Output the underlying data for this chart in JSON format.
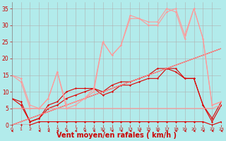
{
  "background_color": "#b2ebeb",
  "grid_color": "#b0b0b0",
  "xlabel": "Vent moyen/en rafales ( km/h )",
  "xlabel_color": "#cc0000",
  "xlabel_fontsize": 7,
  "xtick_color": "#cc0000",
  "ytick_color": "#cc0000",
  "ylim": [
    0,
    37
  ],
  "xlim": [
    0,
    23
  ],
  "yticks": [
    0,
    5,
    10,
    15,
    20,
    25,
    30,
    35
  ],
  "xticks": [
    0,
    1,
    2,
    3,
    4,
    5,
    6,
    7,
    8,
    9,
    10,
    11,
    12,
    13,
    14,
    15,
    16,
    17,
    18,
    19,
    20,
    21,
    22,
    23
  ],
  "series": [
    {
      "x": [
        0,
        1,
        2,
        3,
        4,
        5,
        6,
        7,
        8,
        9,
        10,
        11,
        12,
        13,
        14,
        15,
        16,
        17,
        18,
        19,
        20,
        21,
        22,
        23
      ],
      "y": [
        8,
        7,
        1,
        2,
        5,
        6,
        8,
        9,
        10,
        11,
        9,
        10,
        12,
        12,
        13,
        14,
        14,
        17,
        17,
        14,
        14,
        6,
        2,
        7
      ],
      "color": "#dd0000",
      "marker": "D",
      "markersize": 1.5,
      "linewidth": 0.8
    },
    {
      "x": [
        0,
        1,
        2,
        3,
        4,
        5,
        6,
        7,
        8,
        9,
        10,
        11,
        12,
        13,
        14,
        15,
        16,
        17,
        18,
        19,
        20,
        21,
        22,
        23
      ],
      "y": [
        8,
        6,
        1,
        2,
        6,
        7,
        10,
        11,
        11,
        11,
        10,
        12,
        13,
        13,
        14,
        15,
        17,
        17,
        16,
        14,
        14,
        6,
        1,
        6
      ],
      "color": "#dd0000",
      "marker": "D",
      "markersize": 1.5,
      "linewidth": 0.8
    },
    {
      "x": [
        0,
        1,
        2,
        3,
        4,
        5,
        6,
        7,
        8,
        9,
        10,
        11,
        12,
        13,
        14,
        15,
        16,
        17,
        18,
        19,
        20,
        21,
        22,
        23
      ],
      "y": [
        0,
        0,
        0,
        1,
        1,
        1,
        1,
        1,
        1,
        1,
        1,
        1,
        1,
        1,
        1,
        1,
        1,
        1,
        1,
        1,
        1,
        1,
        0,
        1
      ],
      "color": "#dd0000",
      "marker": "D",
      "markersize": 1.5,
      "linewidth": 0.8
    },
    {
      "x": [
        0,
        1,
        2,
        3,
        4,
        5,
        6,
        7,
        8,
        9,
        10,
        11,
        12,
        13,
        14,
        15,
        16,
        17,
        18,
        19,
        20,
        21,
        22,
        23
      ],
      "y": [
        0,
        1,
        2,
        3,
        4,
        5,
        6,
        7,
        8,
        9,
        10,
        11,
        12,
        13,
        14,
        15,
        16,
        17,
        18,
        19,
        20,
        21,
        22,
        23
      ],
      "color": "#dd0000",
      "marker": null,
      "markersize": 0,
      "linewidth": 0.8
    },
    {
      "x": [
        0,
        1,
        2,
        3,
        4,
        5,
        6,
        7,
        8,
        9,
        10,
        11,
        12,
        13,
        14,
        15,
        16,
        17,
        18,
        19,
        20,
        21,
        22,
        23
      ],
      "y": [
        15,
        14,
        6,
        5,
        8,
        16,
        5,
        6,
        8,
        10,
        25,
        21,
        24,
        33,
        32,
        31,
        31,
        35,
        34,
        26,
        35,
        26,
        6,
        7
      ],
      "color": "#ff9999",
      "marker": "D",
      "markersize": 1.5,
      "linewidth": 0.8
    },
    {
      "x": [
        0,
        1,
        2,
        3,
        4,
        5,
        6,
        7,
        8,
        9,
        10,
        11,
        12,
        13,
        14,
        15,
        16,
        17,
        18,
        19,
        20,
        21,
        22,
        23
      ],
      "y": [
        15,
        13,
        5,
        5,
        8,
        16,
        6,
        7,
        8,
        11,
        25,
        21,
        24,
        32,
        32,
        30,
        30,
        34,
        35,
        27,
        35,
        26,
        6,
        7
      ],
      "color": "#ff9999",
      "marker": "D",
      "markersize": 1.5,
      "linewidth": 0.8
    },
    {
      "x": [
        0,
        1,
        2,
        3,
        4,
        5,
        6,
        7,
        8,
        9,
        10,
        11,
        12,
        13,
        14,
        15,
        16,
        17,
        18,
        19,
        20,
        21,
        22,
        23
      ],
      "y": [
        0,
        1,
        2,
        3,
        4,
        5,
        6,
        7,
        8,
        9,
        10,
        11,
        12,
        13,
        14,
        15,
        16,
        17,
        18,
        19,
        20,
        21,
        22,
        23
      ],
      "color": "#ff9999",
      "marker": null,
      "markersize": 0,
      "linewidth": 0.8
    },
    {
      "x": [
        0,
        1,
        2,
        3,
        4,
        5,
        6,
        7,
        8,
        9,
        10,
        11,
        12,
        13,
        14,
        15,
        16,
        17,
        18,
        19,
        20,
        21,
        22,
        23
      ],
      "y": [
        5,
        5,
        5,
        5,
        5,
        5,
        5,
        5,
        5,
        5,
        5,
        5,
        5,
        5,
        5,
        5,
        5,
        5,
        5,
        5,
        5,
        5,
        5,
        6
      ],
      "color": "#ff9999",
      "marker": null,
      "markersize": 0,
      "linewidth": 0.8
    }
  ],
  "arrow_color": "#cc0000",
  "arrow_angles": [
    225,
    90,
    90,
    225,
    225,
    225,
    225,
    225,
    225,
    225,
    225,
    225,
    225,
    225,
    225,
    225,
    225,
    225,
    225,
    225,
    225,
    225,
    225,
    225
  ]
}
